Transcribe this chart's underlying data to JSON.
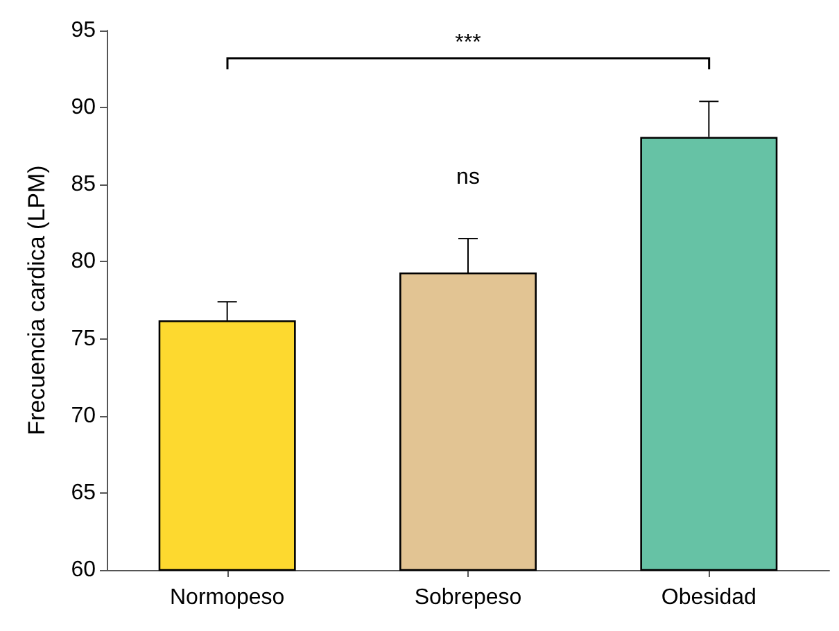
{
  "chart_data": {
    "type": "bar",
    "ylabel": "Frecuencia cardica (LPM)",
    "categories": [
      "Normopeso",
      "Sobrepeso",
      "Obesidad"
    ],
    "values": [
      76.2,
      79.3,
      88.1
    ],
    "colors": [
      "#fdd92f",
      "#e2c493",
      "#66c2a5"
    ],
    "errors": [
      1.2,
      2.2,
      2.3
    ],
    "ylim": [
      60,
      95
    ],
    "yticks": [
      60,
      65,
      70,
      75,
      80,
      85,
      90,
      95
    ],
    "grid": false,
    "annotations": [
      "***",
      "ns"
    ]
  }
}
